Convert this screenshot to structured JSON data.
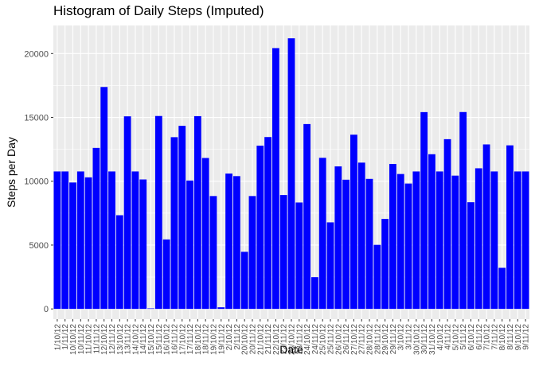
{
  "chart_data": {
    "type": "bar",
    "title": "Histogram of Daily Steps (Imputed)",
    "xlabel": "Date",
    "ylabel": "Steps per Day",
    "ylim": [
      -800,
      22200
    ],
    "yticks": [
      0,
      5000,
      10000,
      15000,
      20000
    ],
    "grid": true,
    "bar_color": "#0000ff",
    "panel_color": "#ebebeb",
    "grid_color": "#ffffff",
    "categories": [
      "1/10/12",
      "1/11/12",
      "10/10/12",
      "10/11/12",
      "11/10/12",
      "11/11/12",
      "12/10/12",
      "12/11/12",
      "13/10/12",
      "13/11/12",
      "14/10/12",
      "14/11/12",
      "15/10/12",
      "15/11/12",
      "16/10/12",
      "16/11/12",
      "17/10/12",
      "17/11/12",
      "18/10/12",
      "18/11/12",
      "19/10/12",
      "19/11/12",
      "2/10/12",
      "2/11/12",
      "20/10/12",
      "20/11/12",
      "21/10/12",
      "21/11/12",
      "22/10/12",
      "22/11/12",
      "23/10/12",
      "23/11/12",
      "24/10/12",
      "24/11/12",
      "25/10/12",
      "25/11/12",
      "26/10/12",
      "26/11/12",
      "27/10/12",
      "27/11/12",
      "28/10/12",
      "28/11/12",
      "29/10/12",
      "29/11/12",
      "3/10/12",
      "3/11/12",
      "30/10/12",
      "30/11/12",
      "31/10/12",
      "4/10/12",
      "4/11/12",
      "5/10/12",
      "5/11/12",
      "6/10/12",
      "6/11/12",
      "7/10/12",
      "7/11/12",
      "8/10/12",
      "8/11/12",
      "9/10/12",
      "9/11/12"
    ],
    "values": [
      10766,
      10766,
      9900,
      10766,
      10304,
      12610,
      17382,
      10766,
      7336,
      15084,
      10766,
      10139,
      41,
      15110,
      5441,
      13450,
      14339,
      10054,
      15098,
      11821,
      8840,
      126,
      10600,
      10400,
      4472,
      8840,
      12787,
      13460,
      20427,
      8918,
      21194,
      8334,
      14478,
      2492,
      11834,
      6778,
      11162,
      10119,
      13646,
      11458,
      10183,
      5018,
      7047,
      11352,
      10566,
      9819,
      10765,
      15414,
      12116,
      10766,
      13294,
      10439,
      15420,
      8355,
      11015,
      12883,
      10766,
      3219,
      12811,
      10766,
      10766
    ]
  }
}
